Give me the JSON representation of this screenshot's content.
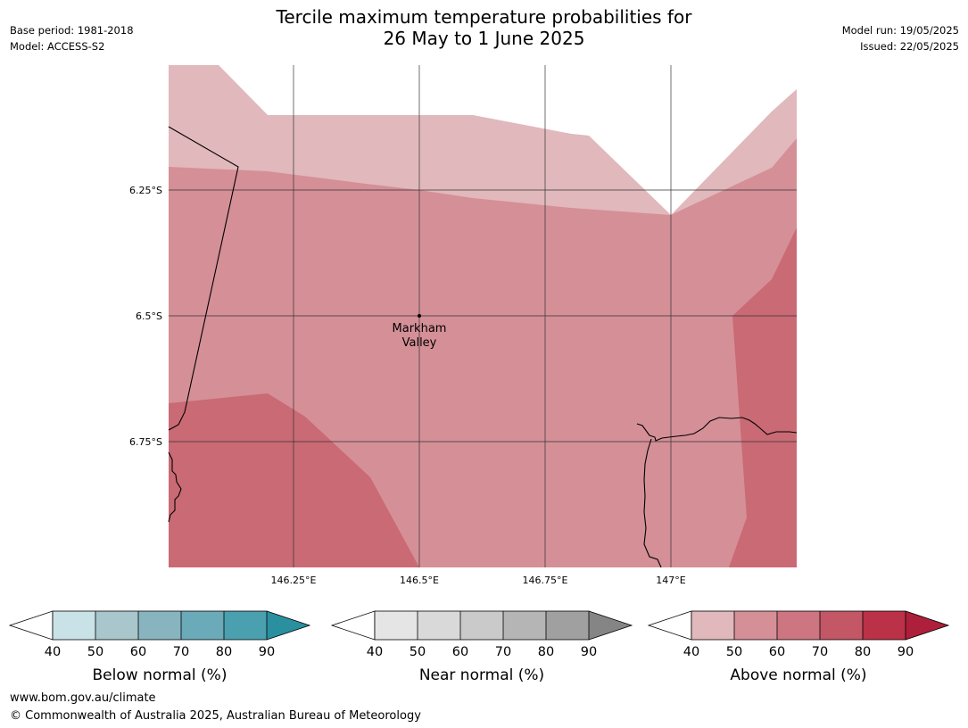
{
  "header": {
    "title_line1": "Tercile maximum temperature probabilities for",
    "title_line2": "26 May to 1 June 2025",
    "base_period": "Base period: 1981-2018",
    "model": "Model: ACCESS-S2",
    "model_run": "Model run: 19/05/2025",
    "issued": "Issued: 22/05/2025"
  },
  "map": {
    "lat_labels": [
      "6.25°S",
      "6.5°S",
      "6.75°S"
    ],
    "lon_labels": [
      "146.25°E",
      "146.5°E",
      "146.75°E",
      "147°E"
    ],
    "place": {
      "name_line1": "Markham",
      "name_line2": "Valley"
    }
  },
  "legends": [
    {
      "title": "Below normal (%)",
      "ticks": [
        "40",
        "50",
        "60",
        "70",
        "80",
        "90"
      ],
      "colors": [
        "#c9e2e7",
        "#a8c6cb",
        "#88b4c0",
        "#6baab8",
        "#4aa0af",
        "#2a8f9f"
      ]
    },
    {
      "title": "Near normal (%)",
      "ticks": [
        "40",
        "50",
        "60",
        "70",
        "80",
        "90"
      ],
      "colors": [
        "#e5e5e5",
        "#d9d9d9",
        "#cacaca",
        "#b5b5b5",
        "#a0a0a0",
        "#858585"
      ]
    },
    {
      "title": "Above normal (%)",
      "ticks": [
        "40",
        "50",
        "60",
        "70",
        "80",
        "90"
      ],
      "colors": [
        "#e1b8bc",
        "#d58f97",
        "#cd7580",
        "#c35766",
        "#bb3147",
        "#ad1f3a"
      ]
    }
  ],
  "footer": {
    "url": "www.bom.gov.au/climate",
    "copyright": "© Commonwealth of Australia 2025, Australian Bureau of Meteorology"
  }
}
